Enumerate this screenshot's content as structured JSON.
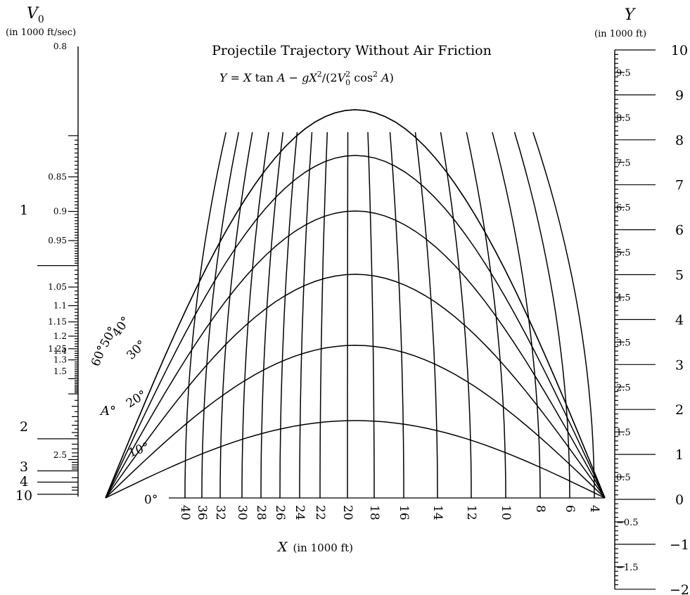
{
  "title": "Projectile Trajectory Without Air Friction",
  "formula": {
    "lhs": "Y",
    "eq": " = ",
    "x": "X",
    "tan": " tan ",
    "a1": "A",
    "minus": " − ",
    "g": "gX",
    "sq": "2",
    "slash": "/(2",
    "v": "V",
    "vsub": "0",
    "vsup": "2",
    "cos": " cos",
    "cossup": "2",
    "a2": " A",
    "close": ")"
  },
  "v0_axis": {
    "label": "V",
    "label_sub": "0",
    "unit": "(in 1000 ft/sec)",
    "major_ticks": [
      "1",
      "2",
      "3",
      "4",
      "10"
    ],
    "minor_ticks": [
      "0.8",
      "0.85",
      "0.9",
      "0.95",
      "1.05",
      "1.1",
      "1.15",
      "1.2",
      "1.25",
      "1.3",
      "1.4",
      "1.5",
      "2.5"
    ]
  },
  "y_axis": {
    "label": "Y",
    "unit": "(in 1000 ft)",
    "major_ticks": [
      "10",
      "9",
      "8",
      "7",
      "6",
      "5",
      "4",
      "3",
      "2",
      "1",
      "0",
      "−1",
      "−2"
    ],
    "minor_ticks": [
      "9.5",
      "8.5",
      "7.5",
      "6.5",
      "5.5",
      "4.5",
      "3.5",
      "2.5",
      "1.5",
      "0.5",
      "−0.5",
      "−1.5"
    ]
  },
  "x_axis": {
    "label": "X",
    "unit": "(in 1000 ft)",
    "tick_labels": [
      "40",
      "36",
      "32",
      "30",
      "28",
      "26",
      "24",
      "22",
      "20",
      "18",
      "16",
      "14",
      "12",
      "10",
      "8",
      "6",
      "4"
    ]
  },
  "angle_axis": {
    "label": "A°",
    "tick_labels": [
      "0°",
      "10°",
      "20°",
      "30°",
      "40°",
      "50°",
      "60°"
    ]
  },
  "chart_data": {
    "type": "nomogram",
    "title": "Projectile Trajectory Without Air Friction",
    "formula": "Y = X tan A − gX²/(2V₀² cos² A)",
    "scales": [
      {
        "name": "V0",
        "unit": "1000 ft/sec",
        "range": [
          0.8,
          10
        ]
      },
      {
        "name": "Y",
        "unit": "1000 ft",
        "range": [
          -2,
          10
        ]
      },
      {
        "name": "X",
        "unit": "1000 ft",
        "values": [
          4,
          6,
          8,
          10,
          12,
          14,
          16,
          18,
          20,
          22,
          24,
          26,
          28,
          30,
          32,
          36,
          40
        ]
      },
      {
        "name": "A",
        "unit": "degrees",
        "values": [
          0,
          10,
          20,
          30,
          40,
          50,
          60
        ]
      }
    ]
  }
}
